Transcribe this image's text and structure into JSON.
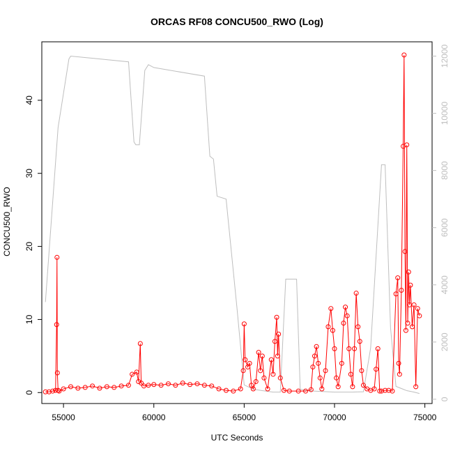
{
  "chart_data": {
    "type": "line",
    "title": "ORCAS RF08 CONCU500_RWO (Log)",
    "xlabel": "UTC Seconds",
    "ylabel": "CONCU500_RWO",
    "xlim": [
      53800,
      75400
    ],
    "ylim": [
      -1.5,
      48.0
    ],
    "y2lim": [
      -150,
      12500
    ],
    "x_ticks": [
      55000,
      60000,
      65000,
      70000,
      75000
    ],
    "y_ticks": [
      0,
      10,
      20,
      30,
      40
    ],
    "y2_ticks": [
      0,
      2000,
      4000,
      6000,
      8000,
      10000,
      12000
    ],
    "grid": false,
    "colors": {
      "primary": "#ff0000",
      "secondary": "#bebebe",
      "axis": "#000000"
    },
    "series": [
      {
        "role": "primary",
        "color": "#ff0000",
        "x": [
          54000,
          54200,
          54400,
          54560,
          54620,
          54640,
          54660,
          54700,
          54760,
          55000,
          55400,
          55800,
          56200,
          56600,
          57000,
          57400,
          57800,
          58200,
          58600,
          58800,
          59050,
          59150,
          59250,
          59300,
          59450,
          59700,
          60000,
          60400,
          60800,
          61200,
          61600,
          62000,
          62400,
          62800,
          63200,
          63600,
          64000,
          64400,
          64800,
          64950,
          65000,
          65050,
          65200,
          65300,
          65400,
          65500,
          65650,
          65800,
          65900,
          66000,
          66100,
          66300,
          66500,
          66600,
          66700,
          66800,
          66850,
          66900,
          67000,
          67200,
          67500,
          68000,
          68400,
          68700,
          68800,
          68900,
          69000,
          69100,
          69200,
          69300,
          69500,
          69650,
          69800,
          69900,
          70000,
          70100,
          70200,
          70400,
          70500,
          70600,
          70700,
          70800,
          70900,
          71000,
          71100,
          71200,
          71300,
          71400,
          71500,
          71600,
          71800,
          72000,
          72200,
          72300,
          72400,
          72500,
          72600,
          72800,
          73000,
          73200,
          73400,
          73500,
          73550,
          73600,
          73700,
          73800,
          73850,
          73900,
          73950,
          74000,
          74050,
          74100,
          74150,
          74200,
          74300,
          74400,
          74500,
          74600,
          74700
        ],
        "values": [
          0.1,
          0.1,
          0.2,
          0.3,
          9.3,
          18.5,
          2.7,
          0.3,
          0.2,
          0.5,
          0.8,
          0.6,
          0.7,
          0.9,
          0.6,
          0.8,
          0.7,
          0.9,
          1.0,
          2.5,
          2.8,
          1.5,
          6.7,
          1.3,
          0.9,
          1.0,
          1.1,
          1.0,
          1.2,
          1.0,
          1.3,
          1.1,
          1.2,
          1.0,
          0.9,
          0.5,
          0.3,
          0.2,
          0.5,
          3.0,
          9.4,
          4.5,
          3.5,
          4.0,
          1.0,
          0.5,
          1.5,
          5.5,
          3.0,
          5.0,
          2.0,
          0.5,
          4.5,
          2.5,
          7.0,
          10.3,
          5.0,
          8.0,
          2.0,
          0.3,
          0.2,
          0.2,
          0.2,
          0.4,
          3.5,
          5.0,
          6.3,
          4.0,
          2.0,
          0.5,
          3.0,
          9.0,
          11.5,
          8.5,
          6.0,
          2.0,
          0.8,
          4.0,
          9.5,
          11.7,
          10.5,
          6.0,
          2.5,
          0.8,
          6.0,
          13.6,
          9.0,
          7.0,
          3.0,
          1.0,
          0.5,
          0.3,
          0.5,
          3.2,
          6.0,
          0.2,
          0.2,
          0.3,
          0.3,
          0.2,
          13.5,
          15.7,
          4.0,
          2.5,
          14.0,
          33.7,
          46.2,
          19.3,
          8.5,
          33.9,
          9.5,
          16.5,
          12.0,
          14.7,
          9.0,
          12.0,
          0.8,
          11.5,
          10.5
        ]
      },
      {
        "role": "secondary",
        "color": "#bebebe",
        "x": [
          54000,
          54700,
          55300,
          55400,
          58600,
          58900,
          59000,
          59200,
          59500,
          59700,
          60000,
          62800,
          63100,
          63300,
          63500,
          64000,
          64600,
          65000,
          65500,
          66000,
          66600,
          67000,
          67300,
          67900,
          68100,
          68500,
          69000,
          69600,
          70000,
          70500,
          71000,
          71600,
          72000,
          72600,
          72800,
          73100,
          73400,
          73800,
          74000,
          74400,
          74700
        ],
        "values": [
          3400,
          9500,
          11900,
          12000,
          11800,
          9000,
          8900,
          8900,
          11500,
          11700,
          11600,
          11300,
          8500,
          8400,
          7100,
          7000,
          3200,
          500,
          350,
          300,
          250,
          250,
          4200,
          4200,
          350,
          300,
          280,
          260,
          250,
          250,
          250,
          260,
          1800,
          8200,
          8200,
          2500,
          450,
          350,
          300,
          250,
          200
        ]
      }
    ]
  }
}
